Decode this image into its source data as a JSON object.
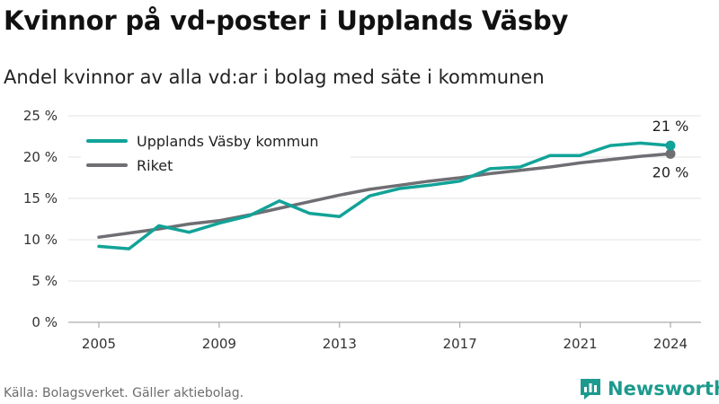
{
  "title": "Kvinnor på vd-poster i Upplands Väsby",
  "subtitle": "Andel kvinnor av alla vd:ar i bolag med säte i kommunen",
  "footer": "Källa: Bolagsverket. Gäller aktiebolag.",
  "brand": {
    "name": "Newsworthy",
    "icon": "newsworthy-logo-icon",
    "color": "#1d9a8e"
  },
  "chart_data": {
    "type": "line",
    "title": "Kvinnor på vd-poster i Upplands Väsby",
    "subtitle": "Andel kvinnor av alla vd:ar i bolag med säte i kommunen",
    "xlabel": "",
    "ylabel": "",
    "x": [
      2005,
      2006,
      2007,
      2008,
      2009,
      2010,
      2011,
      2012,
      2013,
      2014,
      2015,
      2016,
      2017,
      2018,
      2019,
      2020,
      2021,
      2022,
      2023,
      2024
    ],
    "xticks": [
      2005,
      2009,
      2013,
      2017,
      2021,
      2024
    ],
    "xlim": [
      2005,
      2024
    ],
    "ylim": [
      0,
      25
    ],
    "yticks": [
      0,
      5,
      10,
      15,
      20,
      25
    ],
    "ytick_labels": [
      "0 %",
      "5 %",
      "10 %",
      "15 %",
      "20 %",
      "25 %"
    ],
    "grid": "horizontal",
    "legend": "top-left",
    "series": [
      {
        "name": "Upplands Väsby kommun",
        "color": "#12a398",
        "values": [
          9.2,
          8.9,
          11.7,
          10.9,
          12.0,
          12.9,
          14.7,
          13.2,
          12.8,
          15.3,
          16.2,
          16.6,
          17.1,
          18.6,
          18.8,
          20.2,
          20.2,
          21.4,
          21.7,
          21.4
        ],
        "end_label": "21 %"
      },
      {
        "name": "Riket",
        "color": "#6e6e73",
        "values": [
          10.3,
          10.8,
          11.3,
          11.9,
          12.3,
          13.0,
          13.8,
          14.6,
          15.4,
          16.1,
          16.6,
          17.1,
          17.5,
          18.0,
          18.4,
          18.8,
          19.3,
          19.7,
          20.1,
          20.4
        ],
        "end_label": "20 %"
      }
    ]
  }
}
